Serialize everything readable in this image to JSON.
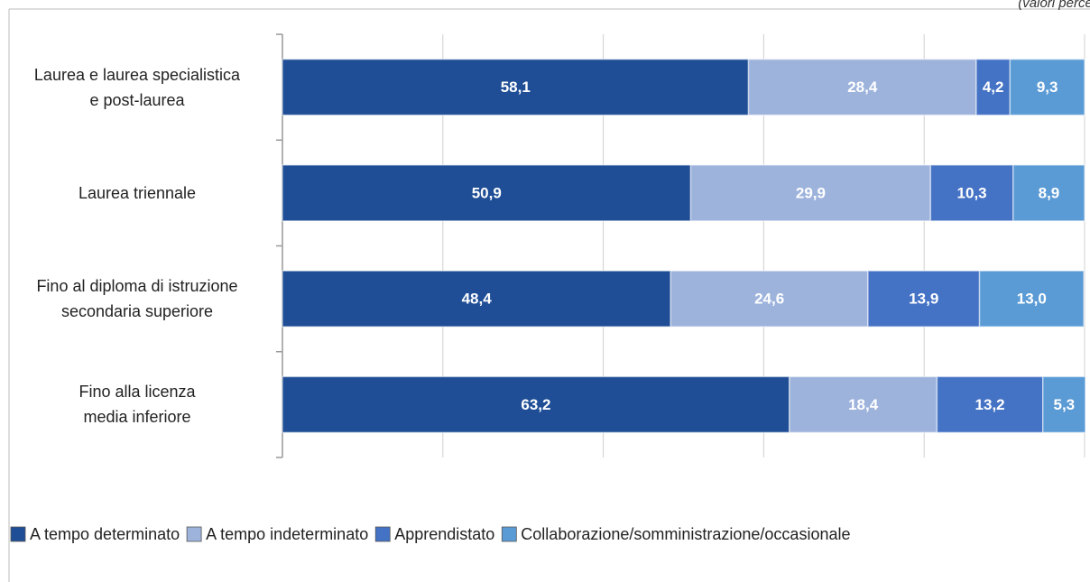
{
  "chart_data": {
    "type": "stacked-bar-horizontal",
    "subtitle": "(valori percentuali)",
    "categories": [
      "Laurea e laurea specialistica\ne post-laurea",
      "Laurea triennale",
      "Fino al diploma di istruzione\nsecondaria superiore",
      "Fino alla licenza\nmedia inferiore"
    ],
    "series": [
      {
        "name": "A tempo determinato",
        "color": "#1f4e96",
        "values": [
          58.1,
          50.9,
          48.4,
          63.2
        ],
        "value_labels": [
          "58,1",
          "50,9",
          "48,4",
          "63,2"
        ]
      },
      {
        "name": "A tempo indeterminato",
        "color": "#9db3dc",
        "values": [
          28.4,
          29.9,
          24.6,
          18.4
        ],
        "value_labels": [
          "28,4",
          "29,9",
          "24,6",
          "18,4"
        ]
      },
      {
        "name": "Apprendistato",
        "color": "#4472c4",
        "values": [
          4.2,
          10.3,
          13.9,
          13.2
        ],
        "value_labels": [
          "4,2",
          "10,3",
          "13,9",
          "13,2"
        ]
      },
      {
        "name": "Collaborazione/somministrazione/occasionale",
        "color": "#5b9bd5",
        "values": [
          9.3,
          8.9,
          13.0,
          5.3
        ],
        "value_labels": [
          "9,3",
          "8,9",
          "13,0",
          "5,3"
        ]
      }
    ],
    "xlim": [
      0,
      100
    ],
    "xticks": [
      0,
      20,
      40,
      60,
      80,
      100
    ],
    "grid": true,
    "legend": "bottom"
  }
}
